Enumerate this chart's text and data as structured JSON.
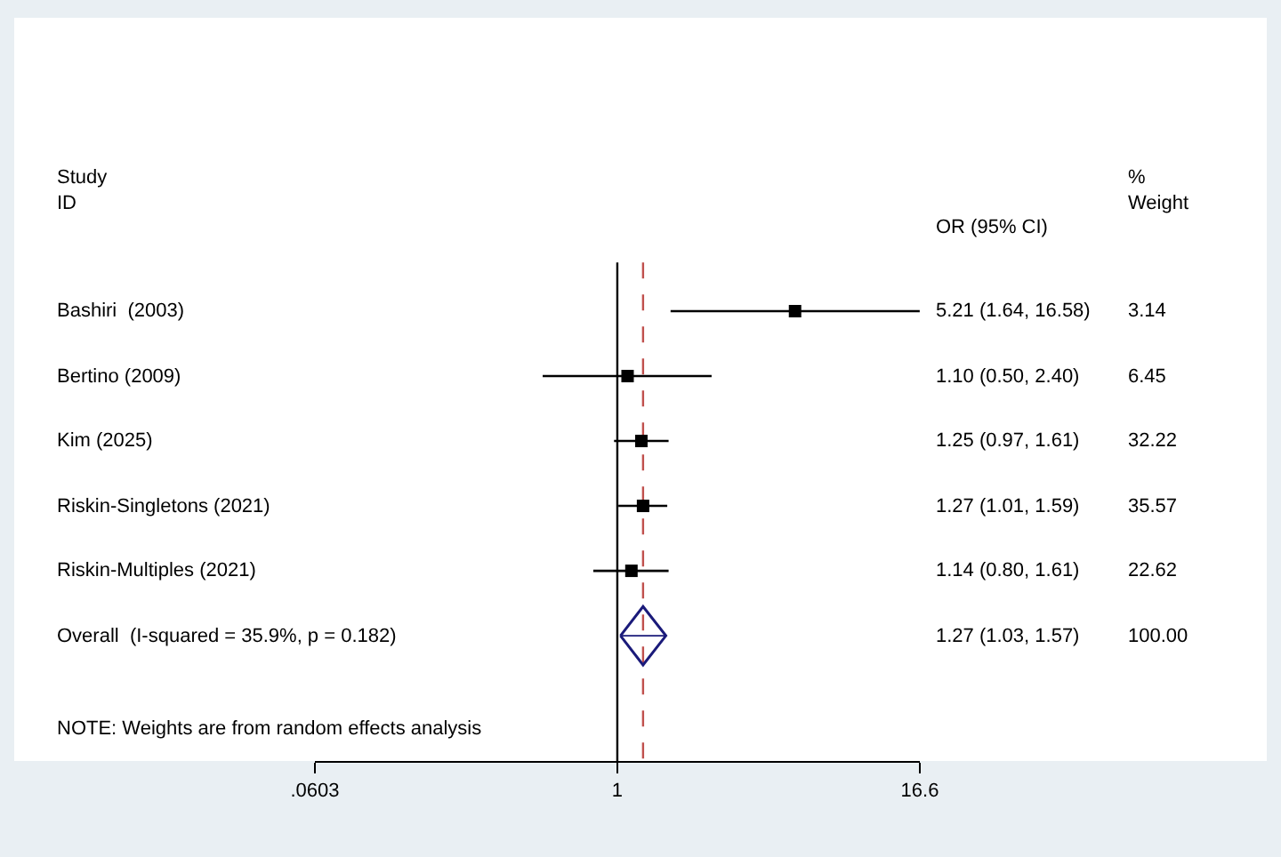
{
  "chart_data": {
    "type": "scatter",
    "orientation": "horizontal",
    "log": "x",
    "categories": [
      "Bashiri  (2003)",
      "Bertino (2009)",
      "Kim (2025)",
      "Riskin-Singletons (2021)",
      "Riskin-Multiples (2021)",
      "Overall  (I-squared = 35.9%, p = 0.182)"
    ],
    "series": [
      {
        "color": "#000000",
        "marker": "square",
        "values": [
          5.21,
          1.1,
          1.25,
          1.27,
          1.14,
          null
        ],
        "errors": [
          [
            1.64,
            16.58
          ],
          [
            0.5,
            2.4
          ],
          [
            0.97,
            1.61
          ],
          [
            1.01,
            1.59
          ],
          [
            0.8,
            1.61
          ],
          null
        ]
      },
      {
        "color": "#1a1a7a",
        "marker": "diamond",
        "values": [
          null,
          null,
          null,
          null,
          null,
          1.27
        ],
        "errors": [
          null,
          null,
          null,
          null,
          null,
          [
            1.03,
            1.57
          ]
        ]
      }
    ],
    "value_labels": [
      "5.21 (1.64, 16.58)",
      "1.10 (0.50, 2.40)",
      "1.25 (0.97, 1.61)",
      "1.27 (1.01, 1.59)",
      "1.14 (0.80, 1.61)",
      "1.27 (1.03, 1.57)"
    ],
    "xlim": [
      0.0603,
      16.6
    ],
    "xticks": [
      {
        "value": 0.0603,
        "label": ".0603"
      },
      1,
      16.6
    ],
    "ref_lines": [
      {
        "axis": "x",
        "value": 1,
        "color": "#000000",
        "line_style": "solid"
      },
      {
        "axis": "x",
        "value": 1.27,
        "color": "#c0504d",
        "line_style": "dashed"
      }
    ],
    "annotations": [
      "Study\nID",
      "OR (95% CI)",
      "%\nWeight",
      "3.14",
      "6.45",
      "32.22",
      "35.57",
      "22.62",
      "100.00",
      "NOTE: Weights are from random effects analysis"
    ],
    "grid": false
  }
}
